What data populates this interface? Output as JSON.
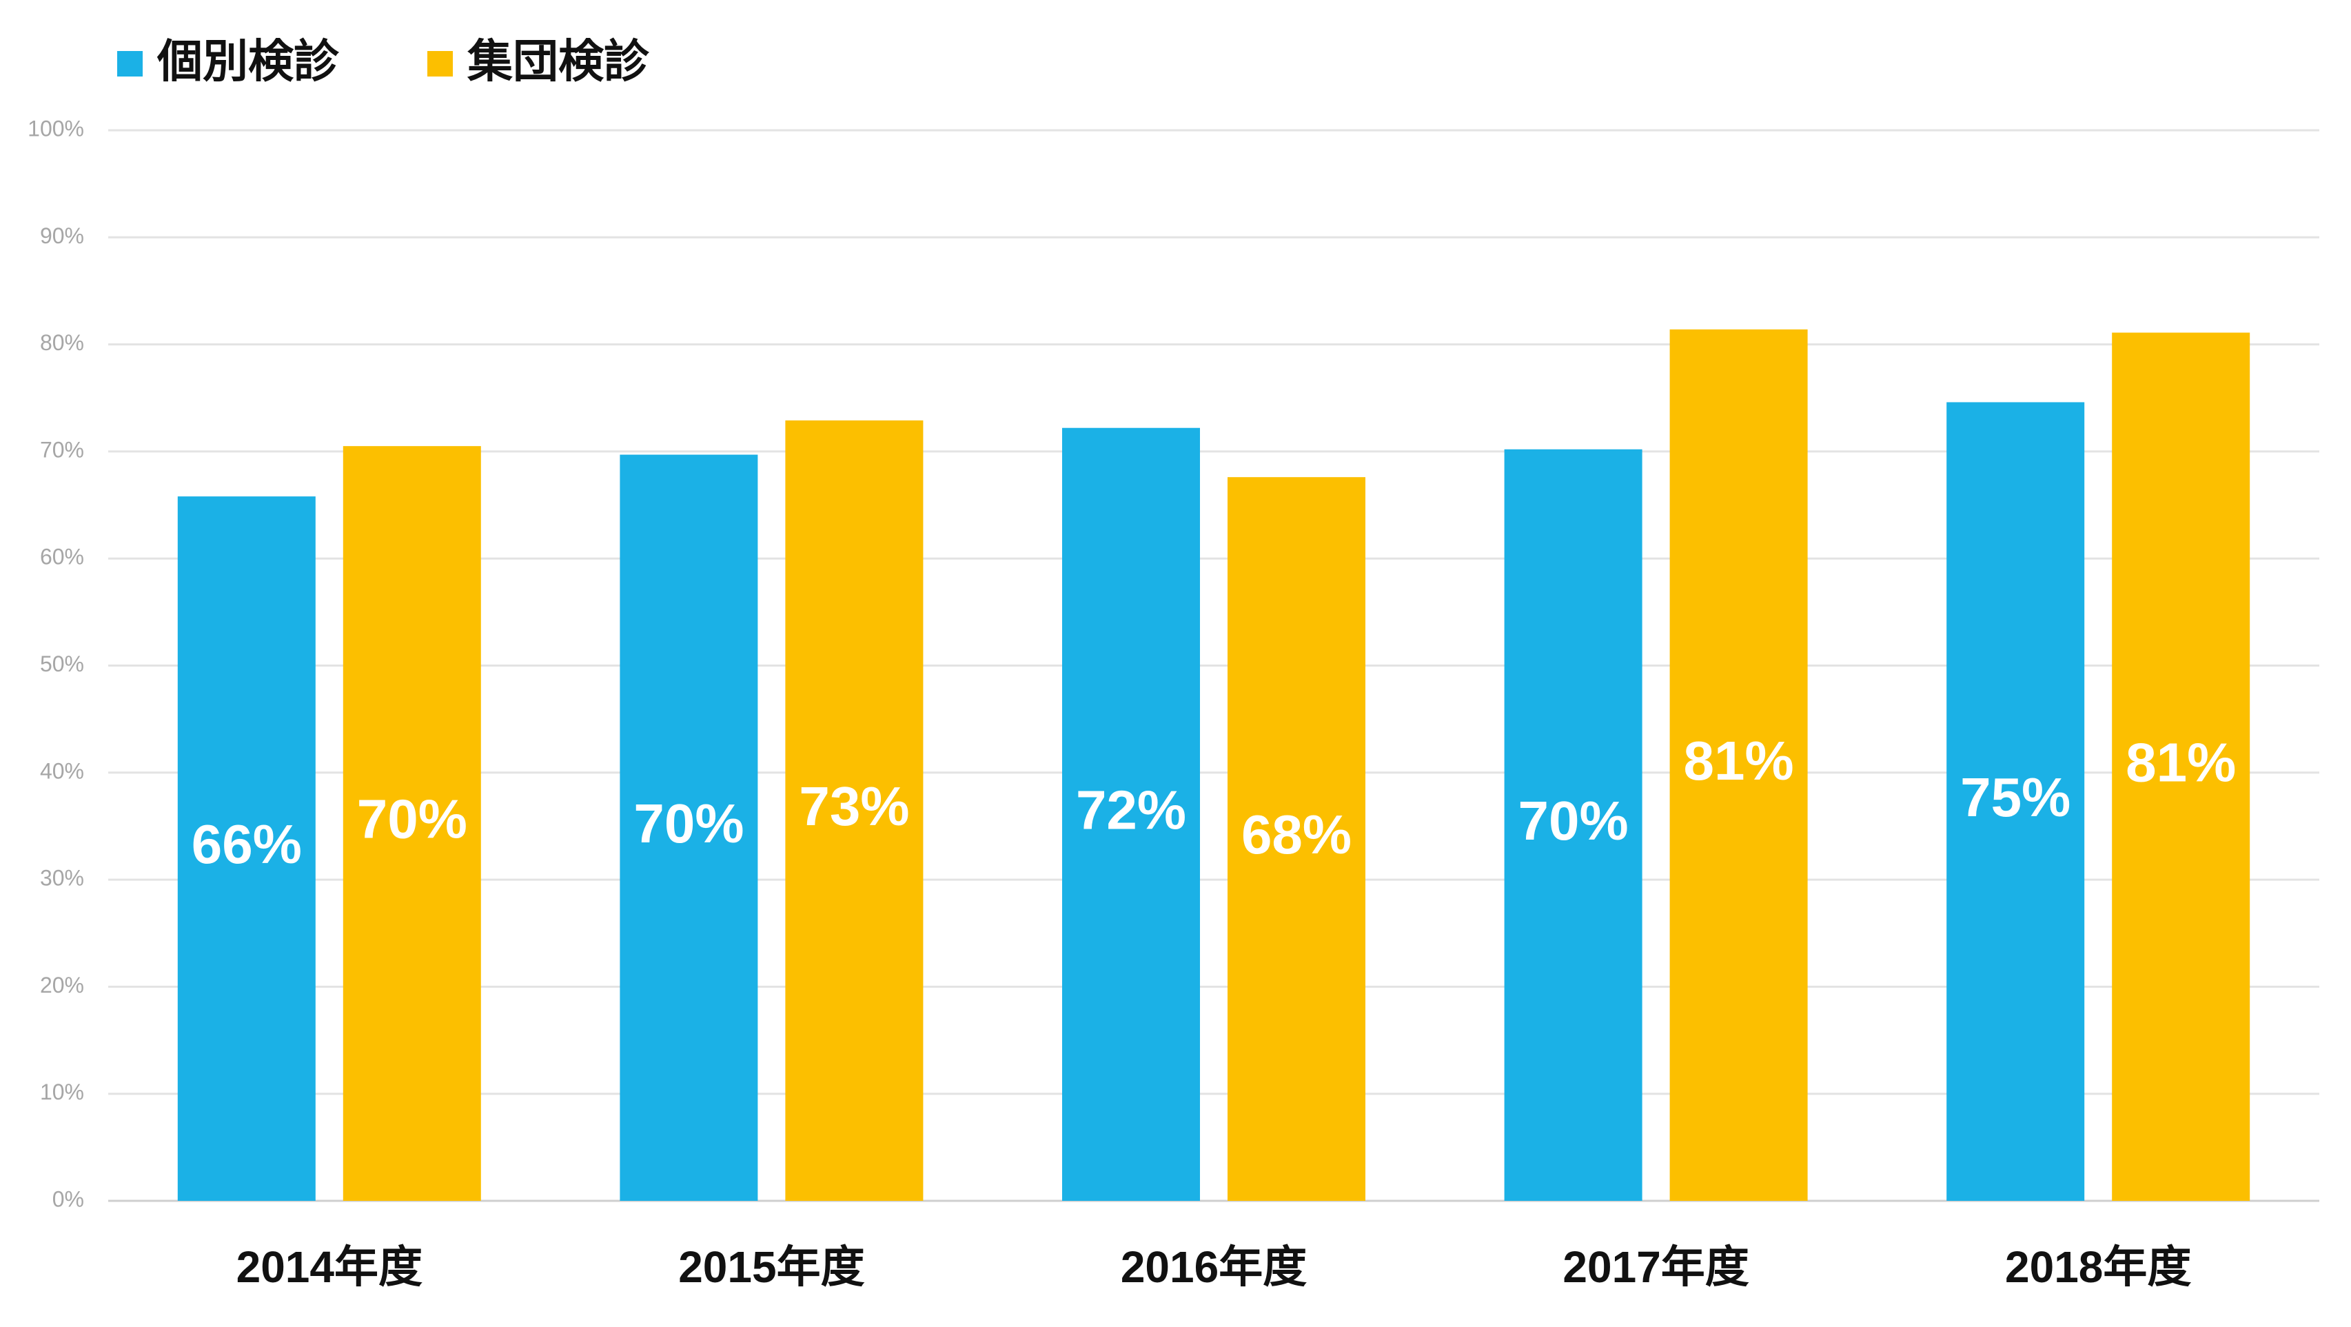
{
  "chart_data": {
    "type": "bar",
    "categories": [
      "2014年度",
      "2015年度",
      "2016年度",
      "2017年度",
      "2018年度"
    ],
    "series": [
      {
        "name": "個別検診",
        "color": "#1bb1e6",
        "values": [
          65.8,
          69.7,
          72.2,
          70.2,
          74.6
        ],
        "value_labels": [
          "66%",
          "70%",
          "72%",
          "70%",
          "75%"
        ]
      },
      {
        "name": "集団検診",
        "color": "#fcbf00",
        "values": [
          70.5,
          72.9,
          67.6,
          81.4,
          81.1
        ],
        "value_labels": [
          "70%",
          "73%",
          "68%",
          "81%",
          "81%"
        ]
      }
    ],
    "ylim": [
      0,
      100
    ],
    "yticks": [
      {
        "value": 0,
        "label": "0%"
      },
      {
        "value": 10,
        "label": "10%"
      },
      {
        "value": 20,
        "label": "20%"
      },
      {
        "value": 30,
        "label": "30%"
      },
      {
        "value": 40,
        "label": "40%"
      },
      {
        "value": 50,
        "label": "50%"
      },
      {
        "value": 60,
        "label": "60%"
      },
      {
        "value": 70,
        "label": "70%"
      },
      {
        "value": 80,
        "label": "80%"
      },
      {
        "value": 90,
        "label": "90%"
      },
      {
        "value": 100,
        "label": "100%"
      }
    ],
    "grid": true,
    "legend": "top-left"
  }
}
